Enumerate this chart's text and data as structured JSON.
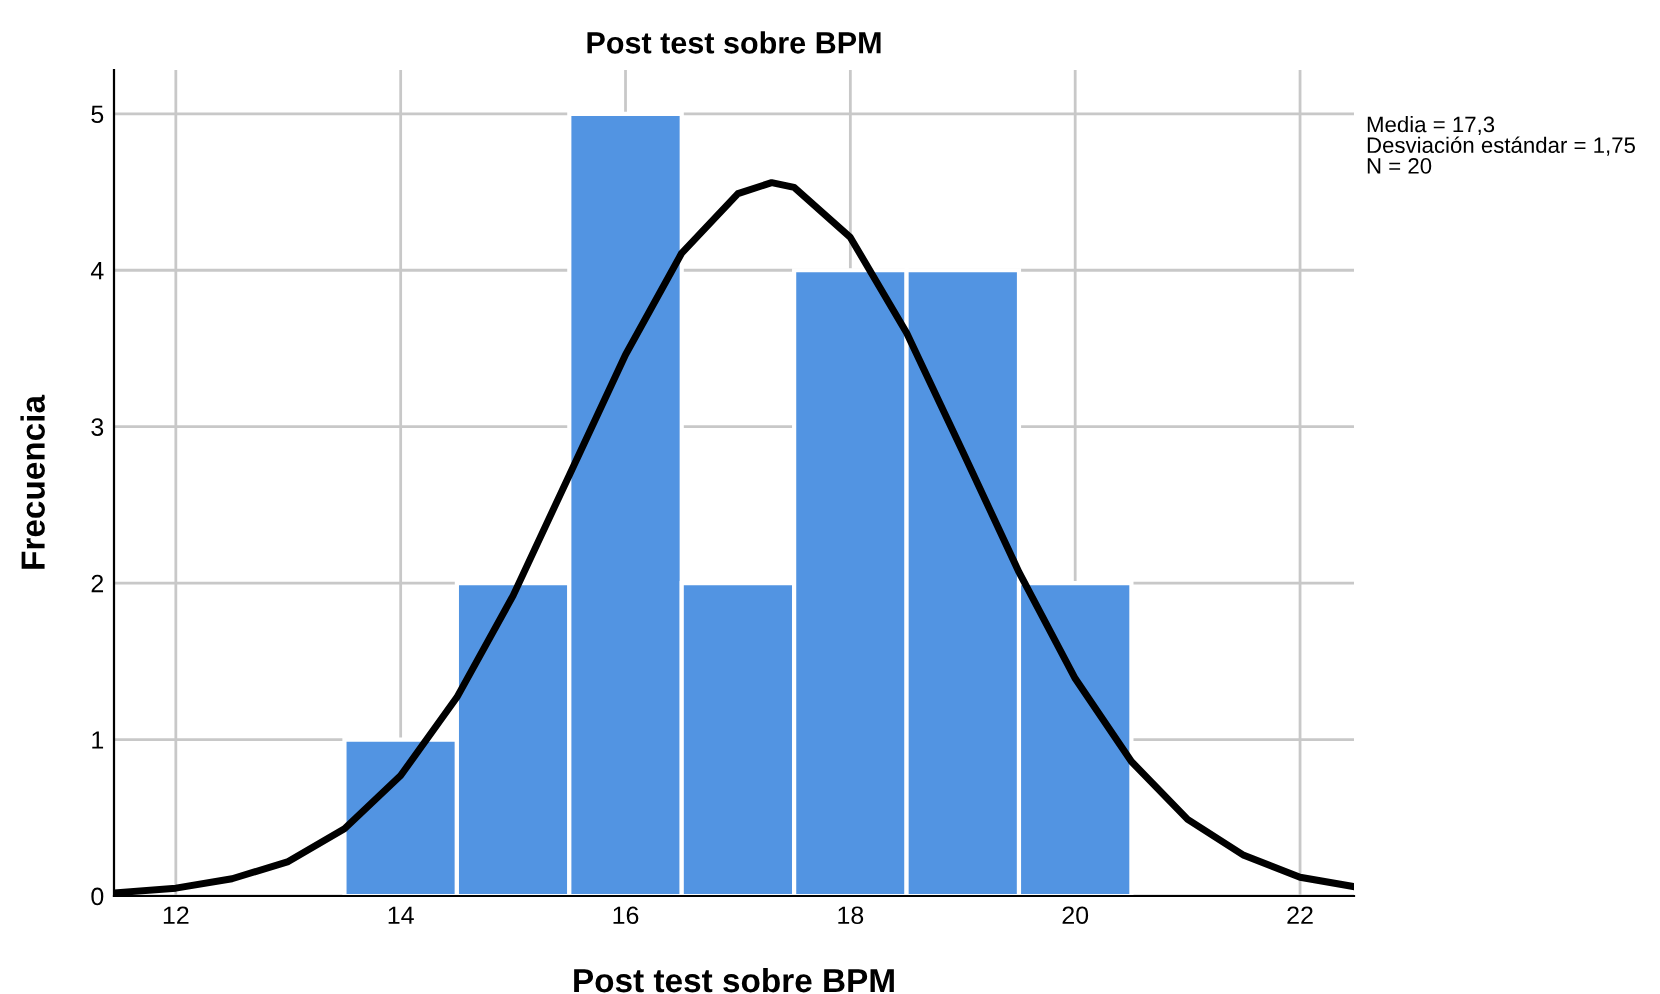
{
  "chart_data": {
    "type": "histogram",
    "title": "Post test sobre BPM",
    "xlabel": "Post test sobre BPM",
    "ylabel": "Frecuencia",
    "xlim": [
      11.45,
      22.48
    ],
    "xticks": [
      12,
      14,
      16,
      18,
      20,
      22
    ],
    "ylim": [
      0,
      5.28
    ],
    "yticks": [
      0,
      1,
      2,
      3,
      4,
      5
    ],
    "grid": true,
    "annotations": [
      "Media = 17,3\nDesviación estándar = 1,75\nN = 20"
    ],
    "series": [
      {
        "type": "histogram",
        "color": "#5294e2",
        "bins": [
          13.5,
          14.5,
          15.5,
          16.5,
          17.5,
          18.5,
          19.5,
          20.5
        ],
        "values": [
          1,
          2,
          5,
          2,
          4,
          4,
          2
        ]
      },
      {
        "type": "line",
        "color": "#000000",
        "line_style": "solid",
        "x": [
          11.45,
          12,
          12.5,
          13,
          13.5,
          14,
          14.5,
          15,
          15.5,
          16,
          16.5,
          17,
          17.3,
          17.5,
          18,
          18.5,
          19,
          19.5,
          20,
          20.5,
          21,
          21.5,
          22,
          22.48
        ],
        "values": [
          0.02,
          0.05,
          0.11,
          0.22,
          0.43,
          0.77,
          1.27,
          1.92,
          2.69,
          3.46,
          4.11,
          4.49,
          4.56,
          4.53,
          4.21,
          3.6,
          2.84,
          2.07,
          1.39,
          0.86,
          0.49,
          0.26,
          0.12,
          0.06
        ]
      }
    ]
  }
}
